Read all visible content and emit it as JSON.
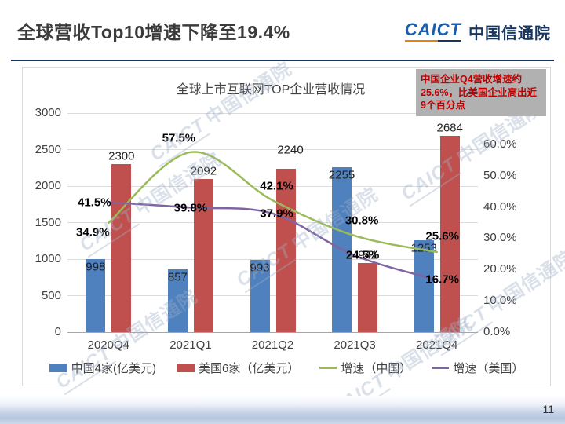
{
  "header": {
    "title": "全球营收Top10增速下降至19.4%",
    "logo": {
      "wordmark": "CAICT",
      "name_cn": "中国信通院"
    }
  },
  "annotation": {
    "text": "中国企业Q4营收增速约25.6%，比美国企业高出近9个百分点"
  },
  "watermark": {
    "text_latin": "CAICT",
    "text_cn": "中国信通院"
  },
  "footer": {
    "page_number": "11"
  },
  "chart_data": {
    "type": "combo-bar-line",
    "title": "全球上市互联网TOP企业营收情况",
    "categories": [
      "2020Q4",
      "2021Q1",
      "2021Q2",
      "2021Q3",
      "2021Q4"
    ],
    "bar_series": [
      {
        "name": "中国4家(亿美元)",
        "color": "#4E81BD",
        "values": [
          998,
          857,
          993,
          2255,
          1253
        ]
      },
      {
        "name": "美国6家（亿美元）",
        "color": "#C0504D",
        "values": [
          2300,
          2092,
          2240,
          941,
          2684
        ]
      }
    ],
    "line_series": [
      {
        "name": "增速（中国）",
        "color": "#9BBB59",
        "values": [
          34.9,
          57.5,
          42.1,
          30.8,
          25.6
        ]
      },
      {
        "name": "增速（美国）",
        "color": "#8064A2",
        "values": [
          41.5,
          39.8,
          37.9,
          24.5,
          16.7
        ]
      }
    ],
    "axes": {
      "left": {
        "min": 0,
        "max": 3000,
        "step": 500
      },
      "right": {
        "min": 0,
        "max": 70,
        "step": 10,
        "suffix": ".0%"
      }
    },
    "grid": true,
    "legend_position": "bottom"
  }
}
